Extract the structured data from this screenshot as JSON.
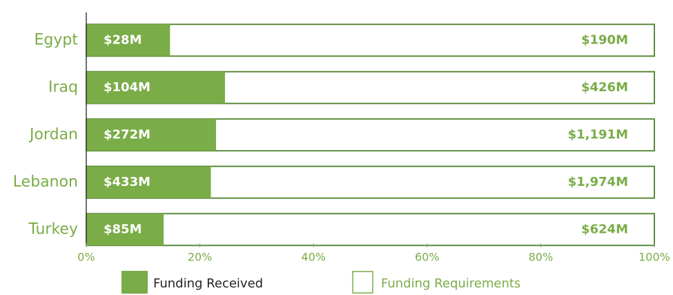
{
  "chart_data": {
    "type": "bar",
    "orientation": "horizontal",
    "normalize": "percent",
    "categories": [
      "Egypt",
      "Iraq",
      "Jordan",
      "Lebanon",
      "Turkey"
    ],
    "series": [
      {
        "name": "Funding Received",
        "color": "#7aac47",
        "values": [
          28000000,
          104000000,
          272000000,
          433000000,
          85000000
        ],
        "value_labels": [
          "$28M",
          "$104M",
          "$272M",
          "$433M",
          "$85M"
        ]
      },
      {
        "name": "Funding Requirements",
        "color": "#ffffff",
        "values": [
          190000000,
          426000000,
          1191000000,
          1974000000,
          624000000
        ],
        "value_labels": [
          "$190M",
          "$426M",
          "$1,191M",
          "$1,974M",
          "$624M"
        ]
      }
    ],
    "xlim": [
      0,
      100
    ],
    "xticks": [
      {
        "value": 0,
        "label": "0%"
      },
      {
        "value": 20,
        "label": "20%"
      },
      {
        "value": 40,
        "label": "40%"
      },
      {
        "value": 60,
        "label": "60%"
      },
      {
        "value": 80,
        "label": "80%"
      },
      {
        "value": 100,
        "label": "100%"
      }
    ],
    "grid": false
  }
}
